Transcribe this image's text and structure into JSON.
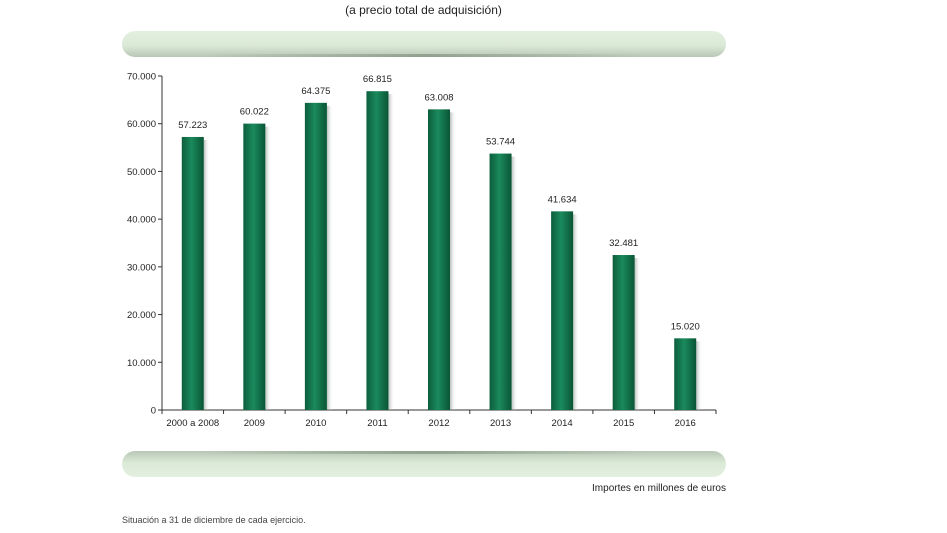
{
  "subtitle": "(a precio total de adquisición)",
  "units_note": "Importes en millones de euros",
  "footnote": "Situación a 31 de diciembre de cada ejercicio.",
  "colors": {
    "bar": "#0f7a4e",
    "band": "#dbe9d7"
  },
  "chart_data": {
    "type": "bar",
    "title": "(a precio total de adquisición)",
    "xlabel": "",
    "ylabel": "",
    "categories": [
      "2000 a 2008",
      "2009",
      "2010",
      "2011",
      "2012",
      "2013",
      "2014",
      "2015",
      "2016"
    ],
    "values": [
      57223,
      60022,
      64375,
      66815,
      63008,
      53744,
      41634,
      32481,
      15020
    ],
    "data_labels": [
      "57.223",
      "60.022",
      "64.375",
      "66.815",
      "63.008",
      "53.744",
      "41.634",
      "32.481",
      "15.020"
    ],
    "ylim": [
      0,
      70000
    ],
    "yticks": [
      0,
      10000,
      20000,
      30000,
      40000,
      50000,
      60000,
      70000
    ],
    "ytick_labels": [
      "0",
      "10.000",
      "20.000",
      "30.000",
      "40.000",
      "50.000",
      "60.000",
      "70.000"
    ],
    "grid": false,
    "legend": "none"
  }
}
